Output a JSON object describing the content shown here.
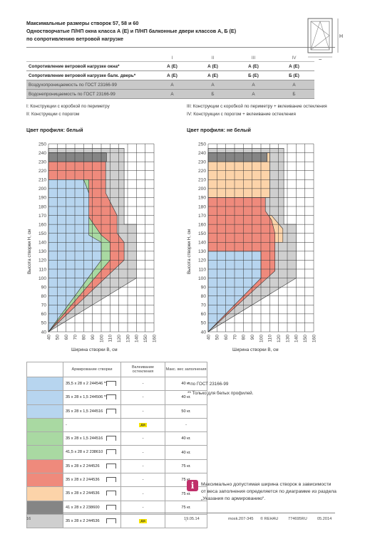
{
  "header": {
    "line1": "Максимальные размеры створок 57, 58 и 60",
    "line2": "Одностворчатые П/НП окна класса А (Е) и П/НП балконные двери классов А, Б (Е)",
    "line3": "по сопротивлению ветровой нагрузке"
  },
  "diagram_labels": {
    "h": "H",
    "b": "B"
  },
  "properties": {
    "columns": [
      "I",
      "II",
      "III",
      "IV"
    ],
    "rows": [
      {
        "label": "Сопротивление ветровой нагрузке окна*",
        "values": [
          "А (Е)",
          "А (Е)",
          "А (Е)",
          "А (Е)"
        ]
      },
      {
        "label": "Сопротивление ветровой нагрузке балк. дверь*",
        "values": [
          "А (Е)",
          "А (Е)",
          "Б (Е)",
          "Б (Е)"
        ]
      },
      {
        "label": "Воздухопроницаемость по ГОСТ 23166-99",
        "values": [
          "А",
          "А",
          "А",
          "А"
        ]
      },
      {
        "label": "Водонепроницаемость по ГОСТ 23166-99",
        "values": [
          "А",
          "Б",
          "А",
          "Б"
        ]
      }
    ]
  },
  "notes": {
    "i": "I: Конструкции с коробкой по периметру",
    "ii": "II: Конструкции с порогом",
    "iii": "III: Конструкции с коробкой по периметру + вклеивание остекления",
    "iv": "IV: Конструкции с порогом + вклеивание остекления"
  },
  "chart_data": [
    {
      "type": "area",
      "title": "Цвет профиля: белый",
      "xlabel": "Ширина створки В, см",
      "ylabel": "Высота створки Н, см",
      "xlim": [
        40,
        160
      ],
      "ylim": [
        40,
        250
      ],
      "xticks": [
        40,
        50,
        60,
        70,
        80,
        90,
        100,
        110,
        120,
        130,
        140,
        150,
        160
      ],
      "yticks": [
        40,
        50,
        60,
        70,
        80,
        90,
        100,
        110,
        120,
        130,
        140,
        150,
        160,
        170,
        180,
        190,
        200,
        210,
        220,
        230,
        240,
        250
      ],
      "series": [
        {
          "color": "#cfcfcf",
          "points": [
            [
              40,
              40
            ],
            [
              140,
              100
            ],
            [
              140,
              160
            ],
            [
              126,
              160
            ],
            [
              126,
              245
            ],
            [
              40,
              245
            ]
          ]
        },
        {
          "color": "#ef8a7c",
          "points": [
            [
              40,
              40
            ],
            [
              126,
              120
            ],
            [
              126,
              140
            ],
            [
              118,
              150
            ],
            [
              118,
              170
            ],
            [
              105,
              195
            ],
            [
              105,
              240
            ],
            [
              40,
              240
            ]
          ]
        },
        {
          "color": "#a9d9a2",
          "points": [
            [
              40,
              40
            ],
            [
              110,
              120
            ],
            [
              110,
              140
            ],
            [
              100,
              148
            ],
            [
              86,
              168
            ],
            [
              86,
              210
            ],
            [
              40,
              210
            ]
          ]
        },
        {
          "color": "#b7d5ef",
          "points": [
            [
              40,
              40
            ],
            [
              100,
              120
            ],
            [
              100,
              140
            ],
            [
              86,
              148
            ],
            [
              86,
              195
            ],
            [
              80,
              210
            ],
            [
              40,
              210
            ]
          ]
        },
        {
          "color": "#858585",
          "points": [
            [
              40,
              230
            ],
            [
              106,
              230
            ],
            [
              106,
              240
            ],
            [
              40,
              240
            ]
          ]
        }
      ]
    },
    {
      "type": "area",
      "title": "Цвет профиля: не белый",
      "xlabel": "Ширина створки В, см",
      "ylabel": "Высота створки Н, см",
      "xlim": [
        40,
        160
      ],
      "ylim": [
        40,
        250
      ],
      "xticks": [
        40,
        50,
        60,
        70,
        80,
        90,
        100,
        110,
        120,
        130,
        140,
        150,
        160
      ],
      "yticks": [
        40,
        50,
        60,
        70,
        80,
        90,
        100,
        110,
        120,
        130,
        140,
        150,
        160,
        170,
        180,
        190,
        200,
        210,
        220,
        230,
        240,
        250
      ],
      "series": [
        {
          "color": "#cfcfcf",
          "points": [
            [
              40,
              40
            ],
            [
              140,
              100
            ],
            [
              140,
              160
            ],
            [
              126,
              160
            ],
            [
              126,
              245
            ],
            [
              40,
              245
            ]
          ]
        },
        {
          "color": "#fcd3a9",
          "points": [
            [
              40,
              170
            ],
            [
              112,
              170
            ],
            [
              125,
              155
            ],
            [
              125,
              140
            ],
            [
              108,
              140
            ],
            [
              108,
              170
            ],
            [
              40,
              170
            ]
          ]
        },
        {
          "color": "#fcd3a9",
          "points": [
            [
              40,
              190
            ],
            [
              110,
              190
            ],
            [
              110,
              240
            ],
            [
              40,
              240
            ]
          ]
        },
        {
          "color": "#ef8a7c",
          "points": [
            [
              40,
              40
            ],
            [
              116,
              108
            ],
            [
              116,
              150
            ],
            [
              112,
              165
            ],
            [
              105,
              175
            ],
            [
              105,
              190
            ],
            [
              40,
              190
            ]
          ]
        },
        {
          "color": "#b7d5ef",
          "points": [
            [
              40,
              40
            ],
            [
              100,
              100
            ],
            [
              100,
              130
            ],
            [
              40,
              130
            ]
          ]
        },
        {
          "color": "#858585",
          "points": [
            [
              40,
              230
            ],
            [
              107,
              230
            ],
            [
              107,
              240
            ],
            [
              40,
              240
            ]
          ]
        }
      ]
    }
  ],
  "legend": {
    "head": {
      "prof": "Армирование створки",
      "glazing": "Вклеивание остекления",
      "weight": "Макс. вес заполнения"
    },
    "rows": [
      {
        "color": "#b7d5ef",
        "prof": "35,5 x 28 x 2 244546 **",
        "glazing": "-",
        "weight": "40 кг."
      },
      {
        "color": "#b7d5ef",
        "prof": "35 x 28 x 1,5 244506 **",
        "glazing": "-",
        "weight": "40 кг."
      },
      {
        "color": "#b7d5ef",
        "prof": "35 x 28 x 1,5 244516",
        "glazing": "-",
        "weight": "50 кг."
      },
      {
        "color": "#a9d9a2",
        "prof": "-",
        "glazing": "да",
        "weight": "-"
      },
      {
        "color": "#a9d9a2",
        "prof": "35 x 28 x 1,5 244516",
        "glazing": "-",
        "weight": "40 кг."
      },
      {
        "color": "#a9d9a2",
        "prof": "41,5 x 28 x 2 238610",
        "glazing": "-",
        "weight": "40 кг."
      },
      {
        "color": "#ef8a7c",
        "prof": "35 x 28 x 2 244526",
        "glazing": "-",
        "weight": "75 кг."
      },
      {
        "color": "#ef8a7c",
        "prof": "35 x 28 x 2 244536",
        "glazing": "-",
        "weight": "75 кг."
      },
      {
        "color": "#fcd3a9",
        "prof": "35 x 28 x 2 244536",
        "glazing": "-",
        "weight": "75 кг."
      },
      {
        "color": "#858585",
        "prof": "41 x 28 x 2 238600",
        "glazing": "-",
        "weight": "75 кг."
      },
      {
        "color": "#cfcfcf",
        "prof": "35 x 28 x 2 244536",
        "glazing": "да",
        "weight": "-"
      }
    ]
  },
  "footnotes": {
    "a": "*   по ГОСТ 23166-99",
    "b": "**  Только для белых профилей."
  },
  "info": {
    "icon": "i",
    "line1": "Максимально допустимая ширина створок в зависимости",
    "line2": "от веса заполнения определяется по диаграмме из раздела",
    "line3": "„Указания по армированию“."
  },
  "footer": {
    "page": "16",
    "date": "19.05.14",
    "code": "mosk.207-345",
    "brand": "© REHAU",
    "doc": "774695RU",
    "month": "05.2014"
  }
}
